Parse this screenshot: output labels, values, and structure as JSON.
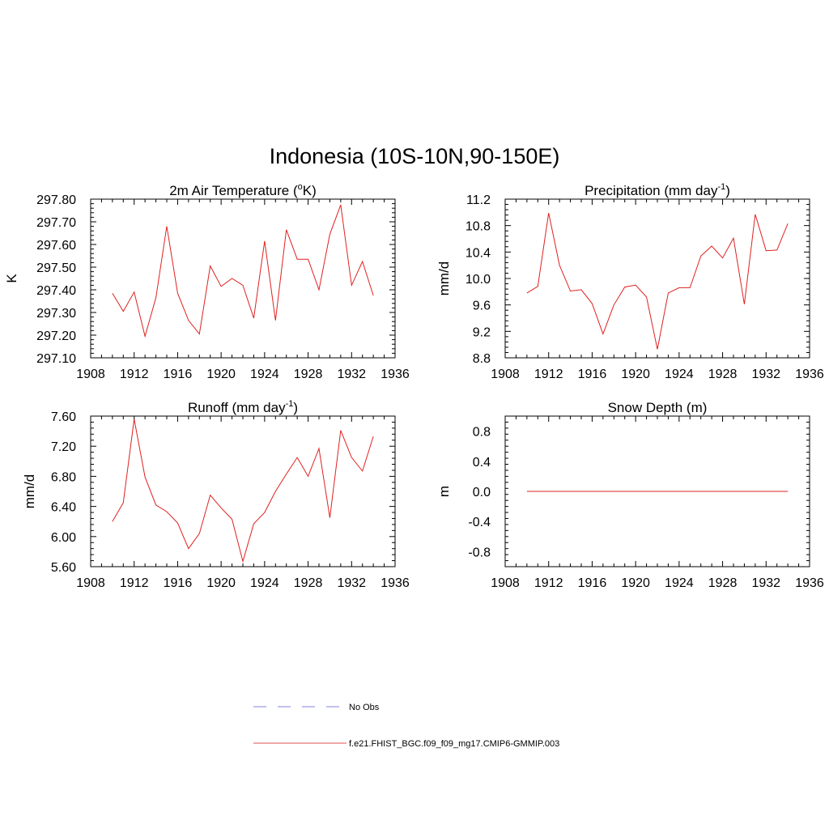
{
  "figure": {
    "title": "Indonesia (10S-10N,90-150E)"
  },
  "legend": {
    "entries": [
      {
        "label": "No Obs",
        "color": "#9a9ae6",
        "style": "dashed"
      },
      {
        "label": "f.e21.FHIST_BGC.f09_f09_mg17.CMIP6-GMMIP.003",
        "color": "#e05050",
        "style": "solid"
      }
    ]
  },
  "chart_data": [
    {
      "type": "line",
      "title": "2m Air Temperature (",
      "title_unit": "o",
      "title_unit_style": "sup",
      "title_suffix": "K)",
      "xlabel": "",
      "ylabel": "K",
      "xlim": [
        1908,
        1936
      ],
      "ylim": [
        297.1,
        297.8
      ],
      "xticks": [
        1908,
        1912,
        1916,
        1920,
        1924,
        1928,
        1932,
        1936
      ],
      "yticks": [
        297.1,
        297.2,
        297.3,
        297.4,
        297.5,
        297.6,
        297.7,
        297.8
      ],
      "ytick_labels": [
        "297.10",
        "297.20",
        "297.30",
        "297.40",
        "297.50",
        "297.60",
        "297.70",
        "297.80"
      ],
      "series": [
        {
          "name": "f.e21.FHIST_BGC.f09_f09_mg17.CMIP6-GMMIP.003",
          "color": "#e02020",
          "x": [
            1910,
            1911,
            1912,
            1913,
            1914,
            1915,
            1916,
            1917,
            1918,
            1919,
            1920,
            1921,
            1922,
            1923,
            1924,
            1925,
            1926,
            1927,
            1928,
            1929,
            1930,
            1931,
            1932,
            1933,
            1934
          ],
          "values": [
            297.385,
            297.305,
            297.39,
            297.195,
            297.365,
            297.68,
            297.385,
            297.265,
            297.205,
            297.505,
            297.415,
            297.45,
            297.42,
            297.275,
            297.615,
            297.265,
            297.665,
            297.535,
            297.535,
            297.4,
            297.645,
            297.775,
            297.42,
            297.525,
            297.375
          ]
        }
      ]
    },
    {
      "type": "line",
      "title": "Precipitation (mm day",
      "title_unit": "-1",
      "title_unit_style": "sup",
      "title_suffix": ")",
      "xlabel": "",
      "ylabel": "mm/d",
      "xlim": [
        1908,
        1936
      ],
      "ylim": [
        8.8,
        11.2
      ],
      "xticks": [
        1908,
        1912,
        1916,
        1920,
        1924,
        1928,
        1932,
        1936
      ],
      "yticks": [
        8.8,
        9.2,
        9.6,
        10.0,
        10.4,
        10.8,
        11.2
      ],
      "ytick_labels": [
        "8.8",
        "9.2",
        "9.6",
        "10.0",
        "10.4",
        "10.8",
        "11.2"
      ],
      "series": [
        {
          "name": "f.e21.FHIST_BGC.f09_f09_mg17.CMIP6-GMMIP.003",
          "color": "#e02020",
          "x": [
            1910,
            1911,
            1912,
            1913,
            1914,
            1915,
            1916,
            1917,
            1918,
            1919,
            1920,
            1921,
            1922,
            1923,
            1924,
            1925,
            1926,
            1927,
            1928,
            1929,
            1930,
            1931,
            1932,
            1933,
            1934
          ],
          "values": [
            9.78,
            9.88,
            10.99,
            10.2,
            9.81,
            9.83,
            9.62,
            9.16,
            9.6,
            9.87,
            9.9,
            9.72,
            8.93,
            9.78,
            9.86,
            9.86,
            10.34,
            10.49,
            10.31,
            10.61,
            9.61,
            10.97,
            10.42,
            10.43,
            10.83
          ]
        }
      ]
    },
    {
      "type": "line",
      "title": "Runoff (mm day",
      "title_unit": "-1",
      "title_unit_style": "sup",
      "title_suffix": ")",
      "xlabel": "",
      "ylabel": "mm/d",
      "xlim": [
        1908,
        1936
      ],
      "ylim": [
        5.6,
        7.6
      ],
      "xticks": [
        1908,
        1912,
        1916,
        1920,
        1924,
        1928,
        1932,
        1936
      ],
      "yticks": [
        5.6,
        6.0,
        6.4,
        6.8,
        7.2,
        7.6
      ],
      "ytick_labels": [
        "5.60",
        "6.00",
        "6.40",
        "6.80",
        "7.20",
        "7.60"
      ],
      "series": [
        {
          "name": "f.e21.FHIST_BGC.f09_f09_mg17.CMIP6-GMMIP.003",
          "color": "#e02020",
          "x": [
            1910,
            1911,
            1912,
            1913,
            1914,
            1915,
            1916,
            1917,
            1918,
            1919,
            1920,
            1921,
            1922,
            1923,
            1924,
            1925,
            1926,
            1927,
            1928,
            1929,
            1930,
            1931,
            1932,
            1933,
            1934
          ],
          "values": [
            6.2,
            6.45,
            7.56,
            6.79,
            6.42,
            6.33,
            6.18,
            5.84,
            6.04,
            6.55,
            6.38,
            6.23,
            5.67,
            6.17,
            6.32,
            6.6,
            6.83,
            7.05,
            6.8,
            7.17,
            6.25,
            7.41,
            7.05,
            6.87,
            7.33
          ]
        }
      ]
    },
    {
      "type": "line",
      "title": "Snow Depth (m)",
      "title_unit": "",
      "title_unit_style": "none",
      "title_suffix": "",
      "xlabel": "",
      "ylabel": "m",
      "xlim": [
        1908,
        1936
      ],
      "ylim": [
        -1.0,
        1.0
      ],
      "xticks": [
        1908,
        1912,
        1916,
        1920,
        1924,
        1928,
        1932,
        1936
      ],
      "yticks": [
        -0.8,
        -0.4,
        0.0,
        0.4,
        0.8
      ],
      "ytick_labels": [
        "-0.8",
        "-0.4",
        "0.0",
        "0.4",
        "0.8"
      ],
      "series": [
        {
          "name": "f.e21.FHIST_BGC.f09_f09_mg17.CMIP6-GMMIP.003",
          "color": "#e02020",
          "x": [
            1910,
            1911,
            1912,
            1913,
            1914,
            1915,
            1916,
            1917,
            1918,
            1919,
            1920,
            1921,
            1922,
            1923,
            1924,
            1925,
            1926,
            1927,
            1928,
            1929,
            1930,
            1931,
            1932,
            1933,
            1934
          ],
          "values": [
            0,
            0,
            0,
            0,
            0,
            0,
            0,
            0,
            0,
            0,
            0,
            0,
            0,
            0,
            0,
            0,
            0,
            0,
            0,
            0,
            0,
            0,
            0,
            0,
            0
          ]
        }
      ]
    }
  ]
}
